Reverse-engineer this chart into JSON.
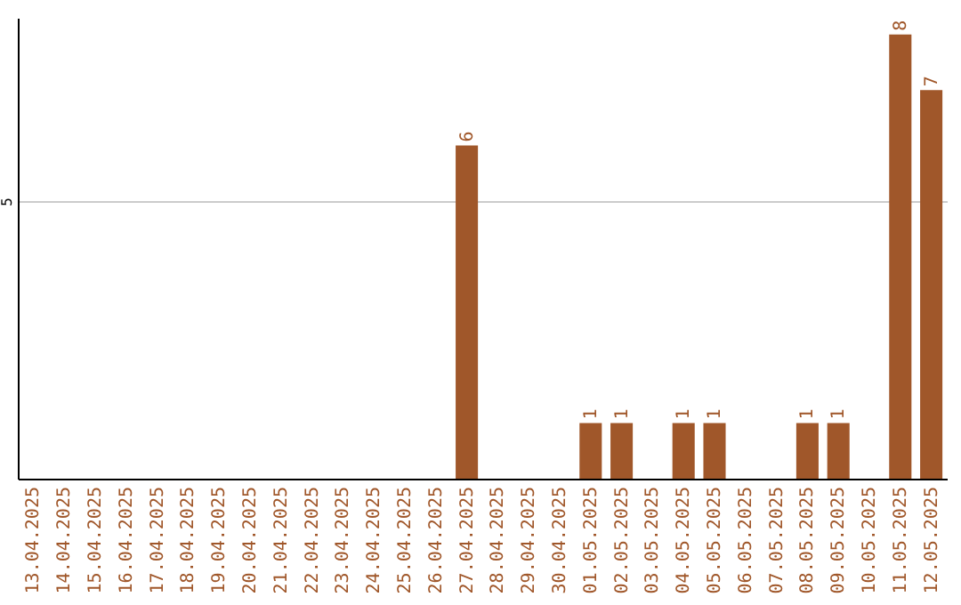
{
  "chart_data": {
    "type": "bar",
    "categories": [
      "13.04.2025",
      "14.04.2025",
      "15.04.2025",
      "16.04.2025",
      "17.04.2025",
      "18.04.2025",
      "19.04.2025",
      "20.04.2025",
      "21.04.2025",
      "22.04.2025",
      "23.04.2025",
      "24.04.2025",
      "25.04.2025",
      "26.04.2025",
      "27.04.2025",
      "28.04.2025",
      "29.04.2025",
      "30.04.2025",
      "01.05.2025",
      "02.05.2025",
      "03.05.2025",
      "04.05.2025",
      "05.05.2025",
      "06.05.2025",
      "07.05.2025",
      "08.05.2025",
      "09.05.2025",
      "10.05.2025",
      "11.05.2025",
      "12.05.2025"
    ],
    "values": [
      null,
      null,
      null,
      null,
      null,
      null,
      null,
      null,
      null,
      null,
      null,
      null,
      null,
      null,
      6,
      null,
      null,
      null,
      1,
      1,
      null,
      1,
      1,
      null,
      null,
      1,
      1,
      null,
      8,
      7
    ],
    "color": "#a0572a",
    "ylim": [
      0,
      8.3
    ],
    "yticks": [
      5
    ],
    "grid": "y",
    "data_labels": true
  }
}
